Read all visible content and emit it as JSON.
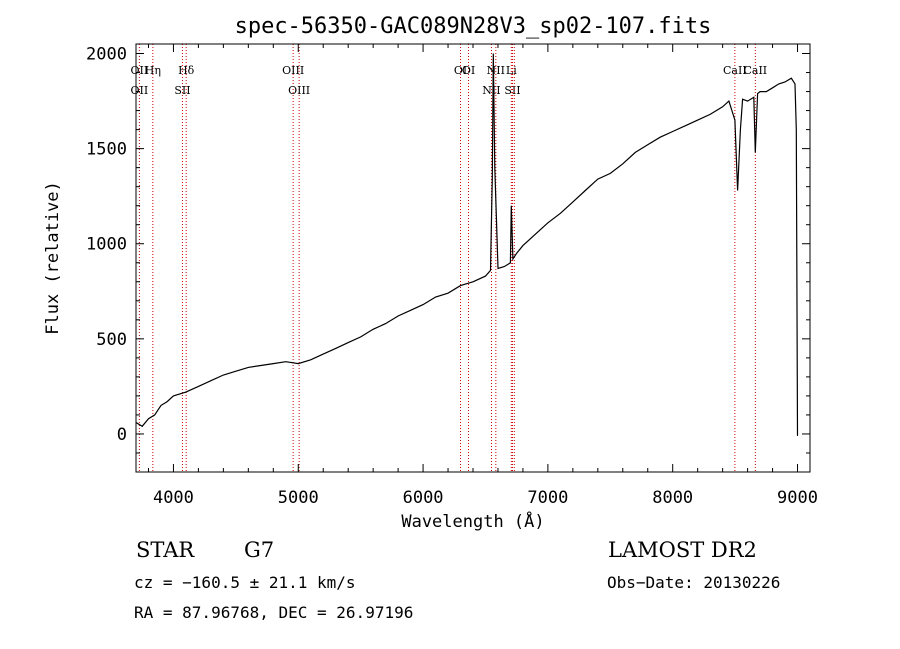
{
  "chart_data": {
    "type": "line",
    "title": "spec-56350-GAC089N28V3_sp02-107.fits",
    "xlabel": "Wavelength (Å)",
    "ylabel": "Flux (relative)",
    "xlim": [
      3700,
      9100
    ],
    "ylim": [
      -200,
      2050
    ],
    "xticks": [
      4000,
      5000,
      6000,
      7000,
      8000,
      9000
    ],
    "xtick_labels": [
      "4000",
      "5000",
      "6000",
      "7000",
      "8000",
      "9000"
    ],
    "yticks": [
      0,
      500,
      1000,
      1500,
      2000
    ],
    "ytick_labels": [
      "0",
      "500",
      "1000",
      "1500",
      "2000"
    ],
    "grid": false,
    "series": [
      {
        "x": [
          3700,
          3750,
          3800,
          3850,
          3900,
          3950,
          4000,
          4100,
          4200,
          4300,
          4400,
          4500,
          4600,
          4700,
          4800,
          4900,
          5000,
          5100,
          5200,
          5300,
          5400,
          5500,
          5600,
          5700,
          5800,
          5900,
          6000,
          6100,
          6200,
          6300,
          6400,
          6500,
          6540,
          6555,
          6563,
          6575,
          6600,
          6650,
          6700,
          6707,
          6720,
          6750,
          6800,
          6900,
          7000,
          7100,
          7200,
          7300,
          7400,
          7500,
          7600,
          7700,
          7800,
          7900,
          8000,
          8100,
          8200,
          8300,
          8400,
          8450,
          8498,
          8520,
          8542,
          8560,
          8600,
          8650,
          8662,
          8680,
          8700,
          8750,
          8800,
          8850,
          8900,
          8950,
          8980,
          8990,
          8995,
          9000
        ],
        "y": [
          60,
          40,
          80,
          100,
          150,
          170,
          200,
          220,
          250,
          280,
          310,
          330,
          350,
          360,
          370,
          380,
          370,
          390,
          420,
          450,
          480,
          510,
          550,
          580,
          620,
          650,
          680,
          720,
          740,
          780,
          800,
          830,
          860,
          1350,
          2000,
          1400,
          870,
          880,
          900,
          1200,
          920,
          950,
          990,
          1050,
          1110,
          1160,
          1220,
          1280,
          1340,
          1370,
          1420,
          1480,
          1520,
          1560,
          1590,
          1620,
          1650,
          1680,
          1720,
          1750,
          1650,
          1280,
          1600,
          1760,
          1750,
          1770,
          1480,
          1790,
          1800,
          1800,
          1820,
          1840,
          1850,
          1870,
          1840,
          1600,
          800,
          -10
        ]
      }
    ],
    "line_markers": [
      {
        "x": 3727,
        "top": "OII",
        "bottom": "OII"
      },
      {
        "x": 3835,
        "top": "Hη",
        "bottom": ""
      },
      {
        "x": 4072,
        "top": "",
        "bottom": "SII"
      },
      {
        "x": 4102,
        "top": "Hδ",
        "bottom": ""
      },
      {
        "x": 4959,
        "top": "OIII",
        "bottom": ""
      },
      {
        "x": 5007,
        "top": "",
        "bottom": "OIII"
      },
      {
        "x": 6300,
        "top": "OI",
        "bottom": ""
      },
      {
        "x": 6364,
        "top": "OI",
        "bottom": ""
      },
      {
        "x": 6548,
        "top": "",
        "bottom": "NII"
      },
      {
        "x": 6583,
        "top": "NII",
        "bottom": ""
      },
      {
        "x": 6707,
        "top": "Li",
        "bottom": ""
      },
      {
        "x": 6716,
        "top": "",
        "bottom": "SII"
      },
      {
        "x": 6731,
        "top": "",
        "bottom": ""
      },
      {
        "x": 8498,
        "top": "CaII",
        "bottom": ""
      },
      {
        "x": 8662,
        "top": "CaII",
        "bottom": ""
      }
    ],
    "line_color": "#000000",
    "marker_color": "#cc0000"
  },
  "info": {
    "class": "STAR",
    "subclass": "G7",
    "survey": "LAMOST DR2",
    "cz": "cz = −160.5 ± 21.1 km/s",
    "obs_date": "Obs−Date: 20130226",
    "radec": "RA =  87.96768, DEC =  26.97196"
  }
}
